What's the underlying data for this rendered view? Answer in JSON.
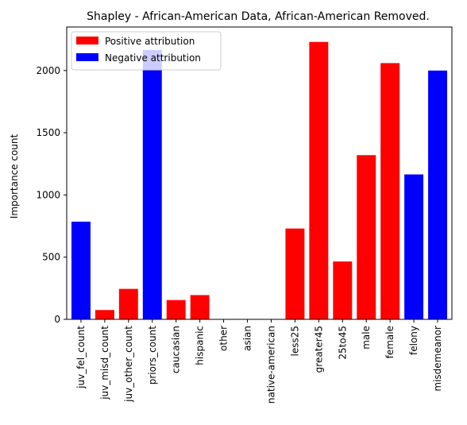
{
  "chart_data": {
    "type": "bar",
    "title": "Shapley - African-American Data, African-American Removed.",
    "xlabel": "",
    "ylabel": "Importance count",
    "ylim": [
      0,
      2350
    ],
    "yticks": [
      0,
      500,
      1000,
      1500,
      2000
    ],
    "grid": false,
    "legend_position": "top-left",
    "legend": [
      {
        "label": "Positive attribution",
        "color": "#ff0000"
      },
      {
        "label": "Negative attribution",
        "color": "#0000ff"
      }
    ],
    "categories": [
      "juv_fel_count",
      "juv_misd_count",
      "juv_other_count",
      "priors_count",
      "caucasian",
      "hispanic",
      "other",
      "asian",
      "native-american",
      "less25",
      "greater45",
      "25to45",
      "male",
      "female",
      "felony",
      "misdemeanor"
    ],
    "values": [
      785,
      75,
      245,
      2165,
      155,
      195,
      0,
      0,
      0,
      730,
      2230,
      465,
      1320,
      2060,
      1165,
      2000
    ],
    "attribution": [
      "negative",
      "positive",
      "positive",
      "negative",
      "positive",
      "positive",
      "positive",
      "positive",
      "positive",
      "positive",
      "positive",
      "positive",
      "positive",
      "positive",
      "negative",
      "negative"
    ]
  }
}
